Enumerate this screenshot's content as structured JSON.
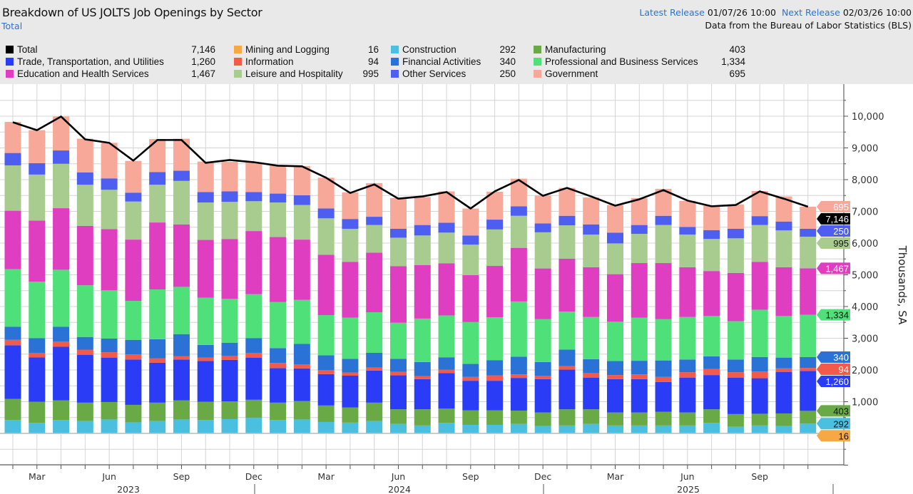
{
  "header": {
    "title": "Breakdown of US JOLTS Job Openings by Sector",
    "subtitle": "Total",
    "latest_release_label": "Latest Release",
    "latest_release_value": "01/07/26 10:00",
    "next_release_label": "Next Release",
    "next_release_value": "02/03/26 10:00",
    "source": "Data from the Bureau of Labor Statistics (BLS)"
  },
  "legend": [
    {
      "label": "Total",
      "value": "7,146",
      "color": "#000000"
    },
    {
      "label": "Trade, Transportation, and Utilities",
      "value": "1,260",
      "color": "#2a3cf5"
    },
    {
      "label": "Education and Health Services",
      "value": "1,467",
      "color": "#e03ec0"
    },
    {
      "label": "Mining and Logging",
      "value": "16",
      "color": "#f5a843"
    },
    {
      "label": "Information",
      "value": "94",
      "color": "#f25a4a"
    },
    {
      "label": "Leisure and Hospitality",
      "value": "995",
      "color": "#a8cc90"
    },
    {
      "label": "Construction",
      "value": "292",
      "color": "#4bbfe0"
    },
    {
      "label": "Financial Activities",
      "value": "340",
      "color": "#2a72d6"
    },
    {
      "label": "Other Services",
      "value": "250",
      "color": "#4d5ef0"
    },
    {
      "label": "Manufacturing",
      "value": "403",
      "color": "#6aaa46"
    },
    {
      "label": "Professional and Business Services",
      "value": "1,334",
      "color": "#4fe07a"
    },
    {
      "label": "Government",
      "value": "695",
      "color": "#f8a898"
    }
  ],
  "chart_data": {
    "type": "bar",
    "stacked": true,
    "title": "Breakdown of US JOLTS Job Openings by Sector",
    "ylabel": "Thousands, SA",
    "ylim": [
      -1000,
      11000
    ],
    "y_axis_position": "right",
    "y_ticks": [
      1000,
      2000,
      3000,
      4000,
      5000,
      6000,
      7000,
      8000,
      9000,
      10000
    ],
    "y_tick_labels": [
      "1,000",
      "2,000",
      "3,000",
      "4,000",
      "5,000",
      "6,000",
      "7,000",
      "8,000",
      "9,000",
      "10,000"
    ],
    "grid": true,
    "x_month_labels": [
      "Mar",
      "Jun",
      "Sep",
      "Dec",
      "Mar",
      "Jun",
      "Sep",
      "Dec",
      "Mar",
      "Jun",
      "Sep"
    ],
    "x_year_labels": [
      "2023",
      "2024",
      "2025"
    ],
    "categories": [
      "2023-02",
      "2023-03",
      "2023-04",
      "2023-05",
      "2023-06",
      "2023-07",
      "2023-08",
      "2023-09",
      "2023-10",
      "2023-11",
      "2023-12",
      "2024-01",
      "2024-02",
      "2024-03",
      "2024-04",
      "2024-05",
      "2024-06",
      "2024-07",
      "2024-08",
      "2024-09",
      "2024-10",
      "2024-11",
      "2024-12",
      "2025-01",
      "2025-02",
      "2025-03",
      "2025-04",
      "2025-05",
      "2025-06",
      "2025-07",
      "2025-08",
      "2025-09",
      "2025-10",
      "2025-11"
    ],
    "series": [
      {
        "name": "Mining and Logging",
        "color": "#f5a843",
        "values": [
          20,
          20,
          20,
          20,
          20,
          20,
          20,
          20,
          20,
          20,
          20,
          20,
          20,
          20,
          20,
          20,
          20,
          20,
          20,
          20,
          20,
          20,
          20,
          20,
          20,
          20,
          20,
          20,
          20,
          20,
          20,
          20,
          20,
          16
        ]
      },
      {
        "name": "Construction",
        "color": "#4bbfe0",
        "values": [
          400,
          310,
          400,
          370,
          420,
          330,
          370,
          420,
          400,
          430,
          470,
          400,
          420,
          340,
          320,
          370,
          280,
          230,
          310,
          250,
          250,
          280,
          210,
          230,
          280,
          230,
          230,
          230,
          230,
          310,
          190,
          230,
          210,
          292
        ]
      },
      {
        "name": "Manufacturing",
        "color": "#6aaa46",
        "values": [
          670,
          670,
          620,
          580,
          550,
          550,
          580,
          600,
          580,
          560,
          570,
          550,
          580,
          520,
          480,
          580,
          460,
          510,
          450,
          460,
          460,
          420,
          430,
          510,
          460,
          410,
          410,
          430,
          410,
          430,
          400,
          370,
          400,
          403
        ]
      },
      {
        "name": "Trade, Transportation, and Utilities",
        "color": "#2a3cf5",
        "values": [
          1690,
          1400,
          1690,
          1510,
          1400,
          1430,
          1260,
          1290,
          1280,
          1310,
          1330,
          1090,
          1030,
          990,
          1000,
          1010,
          1070,
          950,
          1120,
          930,
          930,
          1030,
          1050,
          1250,
          1000,
          1050,
          1050,
          940,
          1100,
          1080,
          1150,
          1120,
          1310,
          1260
        ]
      },
      {
        "name": "Information",
        "color": "#f25a4a",
        "values": [
          170,
          140,
          170,
          160,
          170,
          160,
          140,
          100,
          110,
          130,
          150,
          160,
          130,
          130,
          100,
          100,
          110,
          100,
          110,
          120,
          170,
          110,
          110,
          110,
          150,
          130,
          150,
          160,
          170,
          190,
          170,
          210,
          110,
          94
        ]
      },
      {
        "name": "Financial Activities",
        "color": "#2a72d6",
        "values": [
          410,
          460,
          460,
          400,
          430,
          460,
          600,
          700,
          400,
          410,
          460,
          470,
          640,
          460,
          430,
          460,
          410,
          440,
          390,
          410,
          480,
          560,
          430,
          520,
          430,
          440,
          430,
          520,
          400,
          400,
          400,
          460,
          340,
          340
        ]
      },
      {
        "name": "Professional and Business Services",
        "color": "#4fe07a",
        "values": [
          1820,
          1780,
          1800,
          1630,
          1520,
          1230,
          1570,
          1490,
          1490,
          1380,
          1390,
          1450,
          1390,
          1270,
          1300,
          1280,
          1140,
          1370,
          1320,
          1320,
          1350,
          1740,
          1350,
          1200,
          1330,
          1240,
          1360,
          1300,
          1340,
          1270,
          1210,
          1490,
          1310,
          1334
        ]
      },
      {
        "name": "Education and Health Services",
        "color": "#e03ec0",
        "values": [
          1840,
          1930,
          1940,
          1870,
          1930,
          1930,
          2110,
          1970,
          1820,
          1890,
          1990,
          2050,
          1900,
          1900,
          1760,
          1880,
          1780,
          1690,
          1640,
          1480,
          1620,
          1690,
          1600,
          1670,
          1570,
          1500,
          1720,
          1770,
          1570,
          1420,
          1520,
          1510,
          1540,
          1467
        ]
      },
      {
        "name": "Leisure and Hospitality",
        "color": "#a8cc90",
        "values": [
          1430,
          1450,
          1400,
          1300,
          1240,
          1200,
          1190,
          1370,
          1180,
          1170,
          940,
          1090,
          1090,
          1150,
          1040,
          870,
          900,
          930,
          970,
          960,
          1150,
          1010,
          1140,
          1050,
          1030,
          970,
          920,
          1200,
          1030,
          1010,
          1090,
          1160,
          1160,
          995
        ]
      },
      {
        "name": "Other Services",
        "color": "#4d5ef0",
        "values": [
          390,
          360,
          420,
          390,
          360,
          280,
          400,
          320,
          330,
          330,
          290,
          280,
          310,
          310,
          310,
          260,
          280,
          330,
          310,
          290,
          310,
          300,
          280,
          300,
          320,
          340,
          280,
          290,
          240,
          280,
          300,
          280,
          280,
          250
        ]
      },
      {
        "name": "Government",
        "color": "#f8a898",
        "values": [
          980,
          1040,
          1070,
          1060,
          1120,
          1000,
          1040,
          1010,
          960,
          930,
          940,
          900,
          920,
          970,
          840,
          1060,
          970,
          880,
          990,
          850,
          880,
          870,
          880,
          880,
          850,
          870,
          850,
          850,
          820,
          770,
          770,
          790,
          790,
          695
        ]
      }
    ],
    "total_line": {
      "name": "Total",
      "type": "line",
      "color": "#000000",
      "values": [
        9810,
        9560,
        9990,
        9270,
        9160,
        8600,
        9250,
        9250,
        8530,
        8620,
        8550,
        8440,
        8420,
        8060,
        7580,
        7850,
        7400,
        7470,
        7610,
        7090,
        7630,
        7990,
        7490,
        7740,
        7470,
        7180,
        7380,
        7670,
        7340,
        7160,
        7200,
        7630,
        7400,
        7146
      ]
    }
  }
}
